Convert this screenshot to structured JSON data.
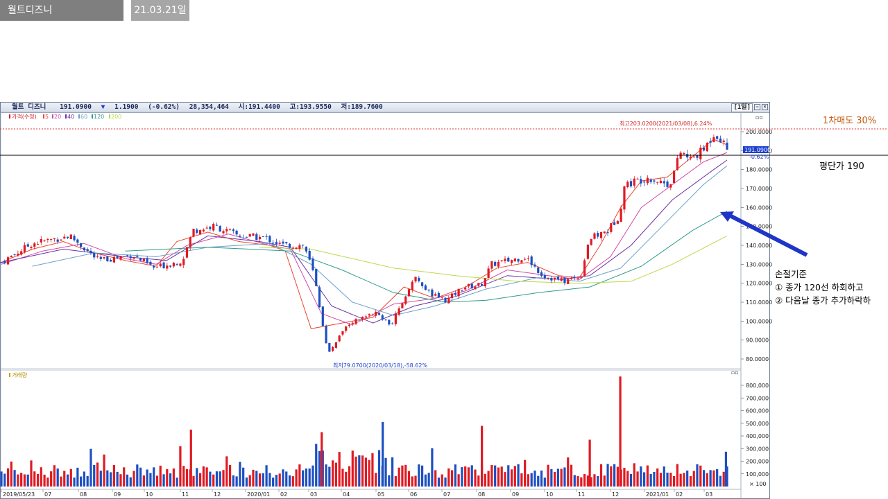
{
  "tabs": {
    "title": "월트디즈니",
    "date": "21.03.21일"
  },
  "header": {
    "name": "월트 디즈니",
    "price": "191.0900",
    "change_arrow": "▼",
    "change": "1.1900",
    "change_pct": "(-0.62%)",
    "volume": "28,354,464",
    "open": "시:191.4400",
    "high": "고:193.9550",
    "low": "저:189.7600",
    "period": "[1일]"
  },
  "legend": {
    "price": "가격(수정)",
    "ma": [
      {
        "label": "5",
        "color": "#e8482f"
      },
      {
        "label": "20",
        "color": "#d24aa8"
      },
      {
        "label": "40",
        "color": "#6b2fa6"
      },
      {
        "label": "60",
        "color": "#6aa0c8"
      },
      {
        "label": "120",
        "color": "#2e9a8a"
      },
      {
        "label": "200",
        "color": "#b9d94a"
      }
    ],
    "volume": "거래량"
  },
  "annotations": {
    "high_label": "최고203.0200(2021/03/08),6.24%",
    "low_label": "최저79.0700(2020/03/18),-58.62%",
    "current_price_tag": "191.0900",
    "current_change_tag": "-0.62%",
    "sell_note": "1차매도 30%",
    "avg_note": "평단가 190",
    "stop_title": "손절기준",
    "stop_line1": "① 종가 120선 하회하고",
    "stop_line2": "② 다음날 종가 추가하락하"
  },
  "colors": {
    "up": "#e01a22",
    "down": "#1c4fc1",
    "sell_line": "#e03030",
    "avg_line": "#000000",
    "arrow": "#1f35c8"
  },
  "chart_data": {
    "type": "candlestick",
    "price_axis": {
      "ticks": [
        80,
        90,
        100,
        110,
        120,
        130,
        140,
        150,
        160,
        170,
        180,
        190,
        200
      ]
    },
    "price_tick_labels": [
      "80.0000",
      "90.0000",
      "100.0000",
      "110.0000",
      "120.0000",
      "130.0000",
      "140.0000",
      "150.0000",
      "160.0000",
      "170.0000",
      "180.0000",
      "190.0000",
      "200.0000"
    ],
    "volume_axis": {
      "ticks": [
        100000,
        200000,
        300000,
        400000,
        500000,
        600000,
        700000,
        800000
      ]
    },
    "volume_tick_labels": [
      "100,000",
      "200,000",
      "300,000",
      "400,000",
      "500,000",
      "600,000",
      "700,000",
      "800,000"
    ],
    "volume_unit": "× 100",
    "x_labels": [
      "2019/05/23",
      "07",
      "08",
      "09",
      "10",
      "11",
      "12",
      "2020/01",
      "02",
      "03",
      "04",
      "05",
      "06",
      "07",
      "08",
      "09",
      "10",
      "11",
      "12",
      "2021/01",
      "02",
      "03"
    ],
    "price_path": [
      [
        "2019-05-23",
        131
      ],
      [
        "2019-06-20",
        141
      ],
      [
        "2019-07-25",
        145
      ],
      [
        "2019-08-20",
        132
      ],
      [
        "2019-09-20",
        135
      ],
      [
        "2019-10-10",
        128
      ],
      [
        "2019-11-05",
        132
      ],
      [
        "2019-11-15",
        148
      ],
      [
        "2019-12-05",
        150
      ],
      [
        "2019-12-27",
        145
      ],
      [
        "2020-01-20",
        144
      ],
      [
        "2020-02-05",
        140
      ],
      [
        "2020-02-25",
        140
      ],
      [
        "2020-03-05",
        124
      ],
      [
        "2020-03-18",
        82
      ],
      [
        "2020-03-30",
        95
      ],
      [
        "2020-04-10",
        100
      ],
      [
        "2020-04-30",
        104
      ],
      [
        "2020-05-15",
        98
      ],
      [
        "2020-06-05",
        123
      ],
      [
        "2020-06-20",
        114
      ],
      [
        "2020-07-05",
        111
      ],
      [
        "2020-07-20",
        118
      ],
      [
        "2020-08-05",
        119
      ],
      [
        "2020-08-15",
        130
      ],
      [
        "2020-08-31",
        132
      ],
      [
        "2020-09-15",
        134
      ],
      [
        "2020-10-01",
        124
      ],
      [
        "2020-10-20",
        121
      ],
      [
        "2020-11-05",
        124
      ],
      [
        "2020-11-12",
        143
      ],
      [
        "2020-11-30",
        148
      ],
      [
        "2020-12-10",
        156
      ],
      [
        "2020-12-15",
        172
      ],
      [
        "2021-01-05",
        176
      ],
      [
        "2021-01-25",
        172
      ],
      [
        "2021-02-05",
        190
      ],
      [
        "2021-02-12",
        185
      ],
      [
        "2021-02-25",
        190
      ],
      [
        "2021-03-08",
        200
      ],
      [
        "2021-03-19",
        191.09
      ]
    ],
    "series": [
      {
        "name": "5",
        "values": [
          [
            0,
            131
          ],
          [
            30,
            138
          ],
          [
            60,
            142
          ],
          [
            90,
            136
          ],
          [
            120,
            132
          ],
          [
            150,
            129
          ],
          [
            170,
            142
          ],
          [
            200,
            147
          ],
          [
            230,
            142
          ],
          [
            260,
            140
          ],
          [
            275,
            137
          ],
          [
            300,
            96
          ],
          [
            330,
            99
          ],
          [
            360,
            102
          ],
          [
            390,
            118
          ],
          [
            420,
            112
          ],
          [
            450,
            118
          ],
          [
            480,
            128
          ],
          [
            510,
            131
          ],
          [
            540,
            124
          ],
          [
            560,
            123
          ],
          [
            580,
            140
          ],
          [
            600,
            160
          ],
          [
            620,
            174
          ],
          [
            645,
            176
          ],
          [
            670,
            187
          ],
          [
            690,
            196
          ],
          [
            703,
            193
          ]
        ]
      },
      {
        "name": "20",
        "values": [
          [
            0,
            130
          ],
          [
            40,
            137
          ],
          [
            80,
            141
          ],
          [
            120,
            133
          ],
          [
            150,
            130
          ],
          [
            180,
            140
          ],
          [
            220,
            146
          ],
          [
            260,
            140
          ],
          [
            280,
            138
          ],
          [
            310,
            104
          ],
          [
            340,
            98
          ],
          [
            380,
            109
          ],
          [
            420,
            112
          ],
          [
            450,
            116
          ],
          [
            490,
            127
          ],
          [
            530,
            124
          ],
          [
            560,
            122
          ],
          [
            590,
            134
          ],
          [
            620,
            160
          ],
          [
            650,
            172
          ],
          [
            680,
            184
          ],
          [
            703,
            189
          ]
        ]
      },
      {
        "name": "40",
        "values": [
          [
            0,
            131
          ],
          [
            60,
            138
          ],
          [
            120,
            134
          ],
          [
            160,
            132
          ],
          [
            200,
            145
          ],
          [
            250,
            142
          ],
          [
            280,
            139
          ],
          [
            320,
            108
          ],
          [
            360,
            99
          ],
          [
            400,
            108
          ],
          [
            440,
            113
          ],
          [
            490,
            124
          ],
          [
            540,
            122
          ],
          [
            570,
            124
          ],
          [
            610,
            140
          ],
          [
            650,
            164
          ],
          [
            690,
            180
          ],
          [
            703,
            185
          ]
        ]
      },
      {
        "name": "60",
        "values": [
          [
            30,
            129
          ],
          [
            90,
            136
          ],
          [
            150,
            134
          ],
          [
            200,
            139
          ],
          [
            260,
            141
          ],
          [
            300,
            130
          ],
          [
            340,
            110
          ],
          [
            380,
            103
          ],
          [
            420,
            108
          ],
          [
            470,
            117
          ],
          [
            520,
            123
          ],
          [
            560,
            121
          ],
          [
            600,
            128
          ],
          [
            640,
            150
          ],
          [
            680,
            172
          ],
          [
            703,
            182
          ]
        ]
      },
      {
        "name": "120",
        "values": [
          [
            120,
            137
          ],
          [
            200,
            139
          ],
          [
            280,
            137
          ],
          [
            330,
            127
          ],
          [
            380,
            115
          ],
          [
            430,
            110
          ],
          [
            470,
            111
          ],
          [
            520,
            115
          ],
          [
            570,
            118
          ],
          [
            620,
            129
          ],
          [
            670,
            148
          ],
          [
            703,
            158
          ]
        ]
      },
      {
        "name": "200",
        "values": [
          [
            250,
            139
          ],
          [
            300,
            138
          ],
          [
            380,
            128
          ],
          [
            440,
            124
          ],
          [
            500,
            121
          ],
          [
            560,
            120
          ],
          [
            610,
            121
          ],
          [
            650,
            130
          ],
          [
            703,
            145
          ]
        ]
      }
    ]
  }
}
